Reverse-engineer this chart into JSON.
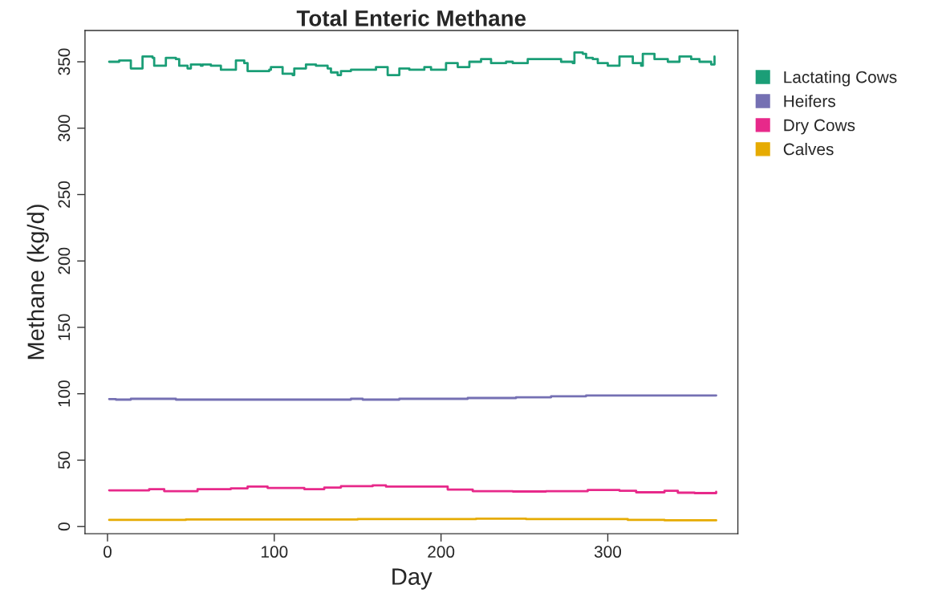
{
  "chart_data": {
    "type": "step",
    "title": "Total Enteric Methane",
    "xlabel": "Day",
    "ylabel": "Methane (kg/d)",
    "xlim": [
      -13.5,
      378
    ],
    "ylim": [
      -5.4,
      373.6
    ],
    "xticks": [
      0,
      100,
      200,
      300
    ],
    "yticks": [
      0,
      50,
      100,
      150,
      200,
      250,
      300,
      350
    ],
    "grid": false,
    "legend": "top right",
    "line_style": "solid",
    "marker": "none",
    "series": [
      {
        "name": "Lactating Cows",
        "color": "#1b9e77",
        "x": [
          1,
          6,
          7,
          12,
          14,
          20,
          21,
          27,
          28,
          34,
          35,
          41,
          43,
          48,
          50,
          56,
          57,
          62,
          68,
          73,
          77,
          82,
          84,
          90,
          97,
          98,
          104,
          105,
          111,
          112,
          117,
          119,
          125,
          132,
          134,
          138,
          140,
          146,
          154,
          159,
          161,
          166,
          168,
          173,
          175,
          181,
          188,
          190,
          194,
          202,
          203,
          208,
          210,
          215,
          217,
          222,
          224,
          230,
          237,
          239,
          243,
          251,
          252,
          258,
          267,
          272,
          279,
          280,
          285,
          287,
          291,
          294,
          300,
          306,
          307,
          314,
          315,
          320,
          321,
          327,
          328,
          336,
          342,
          343,
          348,
          350,
          355,
          362,
          364
        ],
        "values": [
          350,
          350,
          351,
          351,
          345,
          345,
          354,
          353,
          347,
          347,
          353,
          352,
          347,
          345,
          348,
          347,
          348,
          347,
          344,
          344,
          351,
          349,
          343,
          343,
          344,
          346,
          346,
          341,
          340,
          345,
          345,
          348,
          347,
          345,
          342,
          340,
          343,
          344,
          344,
          344,
          346,
          346,
          340,
          340,
          345,
          344,
          344,
          346,
          344,
          344,
          349,
          349,
          346,
          346,
          350,
          350,
          352,
          349,
          349,
          350,
          349,
          349,
          352,
          352,
          352,
          350,
          349,
          357,
          356,
          353,
          352,
          349,
          347,
          347,
          354,
          354,
          349,
          347,
          356,
          356,
          352,
          350,
          350,
          354,
          354,
          352,
          350,
          348,
          354
        ]
      },
      {
        "name": "Heifers",
        "color": "#7570b3",
        "x": [
          1,
          5,
          14,
          41,
          146,
          153,
          175,
          216,
          245,
          266,
          287,
          365
        ],
        "values": [
          96.0,
          95.6,
          96.2,
          95.6,
          96.2,
          95.6,
          96.2,
          96.8,
          97.4,
          98.1,
          98.7,
          98.7
        ]
      },
      {
        "name": "Dry Cows",
        "color": "#e7298a",
        "x": [
          1,
          25,
          34,
          54,
          74,
          84,
          96,
          118,
          130,
          140,
          159,
          167,
          182,
          194,
          204,
          219,
          243,
          263,
          288,
          307,
          317,
          334,
          342,
          352,
          365
        ],
        "values": [
          27.3,
          28.2,
          26.7,
          28.2,
          28.8,
          30.1,
          29.1,
          28.2,
          29.4,
          30.4,
          31.0,
          30.1,
          30.1,
          30.1,
          27.9,
          26.7,
          26.4,
          26.7,
          27.6,
          27.0,
          25.8,
          27.0,
          25.5,
          25.2,
          26.1
        ]
      },
      {
        "name": "Calves",
        "color": "#e6ab02",
        "x": [
          1,
          47,
          150,
          221,
          251,
          312,
          334,
          365
        ],
        "values": [
          5.0,
          5.3,
          5.6,
          5.9,
          5.6,
          5.0,
          4.7,
          4.7
        ]
      }
    ]
  }
}
